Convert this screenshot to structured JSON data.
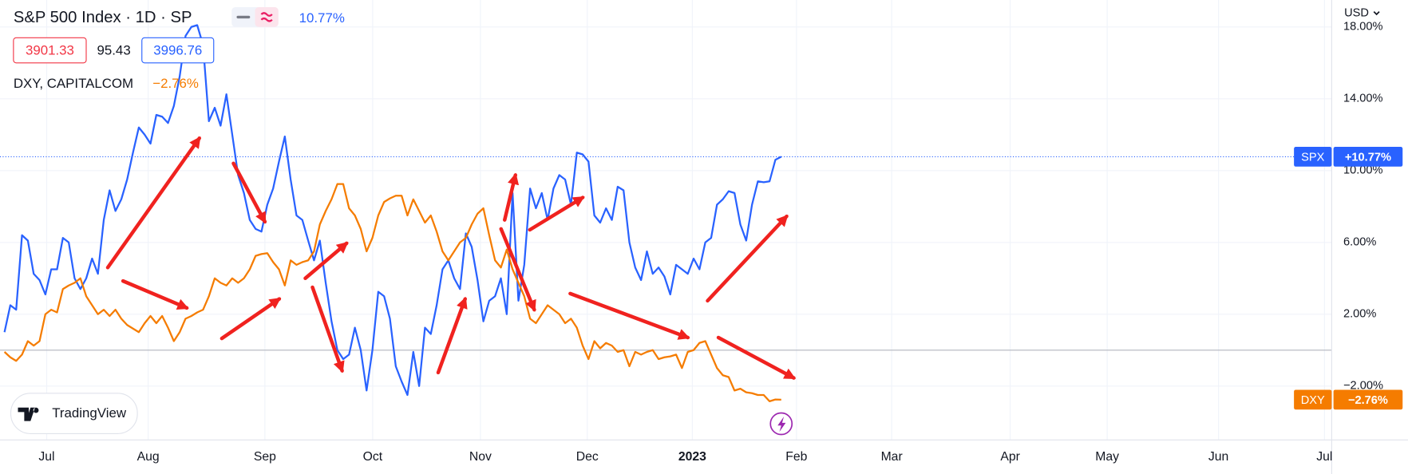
{
  "chart_data": {
    "type": "line",
    "title": "S&P 500 Index · 1D · SP",
    "change": "10.77%",
    "ohlc": [
      "3901.33",
      "95.43",
      "3996.76"
    ],
    "compare_label": "DXY, CAPITALCOM",
    "compare_change": "−2.76%",
    "currency": "USD",
    "brand": "TradingView",
    "x_labels": [
      "Jul",
      "Aug",
      "Sep",
      "Oct",
      "Nov",
      "Dec",
      "2023",
      "Feb",
      "Mar",
      "Apr",
      "May",
      "Jun",
      "Jul"
    ],
    "ylim": [
      -5,
      19.5
    ],
    "yticks": [
      {
        "value": 18,
        "label": "18.00%"
      },
      {
        "value": 14,
        "label": "14.00%"
      },
      {
        "value": 10,
        "label": "10.00%"
      },
      {
        "value": 6,
        "label": "6.00%"
      },
      {
        "value": 2,
        "label": "2.00%"
      },
      {
        "value": -2,
        "label": "−2.00%"
      }
    ],
    "baseline": 0,
    "series": [
      {
        "name": "SPX",
        "color": "#2962ff",
        "last_label": "+10.77%",
        "values": [
          1.0,
          2.5,
          2.25,
          6.4,
          6.1,
          4.25,
          3.9,
          3.1,
          4.5,
          4.5,
          6.25,
          6.0,
          4.0,
          3.4,
          4.0,
          5.1,
          4.25,
          7.25,
          8.9,
          7.75,
          8.4,
          9.5,
          11.0,
          12.4,
          12.0,
          11.5,
          13.1,
          13.0,
          12.65,
          13.6,
          15.25,
          17.5,
          18.0,
          18.1,
          17.0,
          12.75,
          13.5,
          12.5,
          14.25,
          12.0,
          9.75,
          8.75,
          7.25,
          6.75,
          6.6,
          8.1,
          9.0,
          10.5,
          11.9,
          9.5,
          7.5,
          7.25,
          6.1,
          5.0,
          6.1,
          3.75,
          1.6,
          0,
          -0.5,
          -0.25,
          1.25,
          0,
          -2.25,
          0,
          3.25,
          3.0,
          1.75,
          -0.9,
          -1.75,
          -2.5,
          -0.1,
          -2.0,
          1.25,
          0.9,
          2.5,
          4.5,
          5.0,
          4.0,
          3.4,
          6.5,
          5.75,
          3.9,
          1.6,
          2.75,
          3.0,
          4.0,
          2.0,
          8.75,
          2.75,
          4.75,
          9.0,
          7.9,
          8.75,
          7.25,
          9.0,
          9.75,
          9.5,
          8.1,
          11.0,
          10.9,
          10.5,
          7.5,
          7.1,
          7.9,
          7.25,
          9.1,
          8.9,
          6.0,
          4.6,
          3.9,
          5.5,
          4.25,
          4.6,
          4.1,
          3.1,
          4.75,
          4.5,
          4.25,
          5.1,
          4.5,
          6.0,
          6.25,
          8.1,
          8.4,
          8.85,
          8.75,
          7.0,
          6.1,
          8.1,
          9.4,
          9.35,
          9.4,
          10.6,
          10.77
        ]
      },
      {
        "name": "DXY",
        "color": "#f57c00",
        "last_label": "−2.76%",
        "values": [
          -0.1,
          -0.4,
          -0.6,
          -0.25,
          0.5,
          0.25,
          0.5,
          2.0,
          2.25,
          2.1,
          3.4,
          3.6,
          3.75,
          4.0,
          3.0,
          2.5,
          2.0,
          2.25,
          1.9,
          2.25,
          1.75,
          1.4,
          1.2,
          1.0,
          1.5,
          1.9,
          1.5,
          1.9,
          1.25,
          0.5,
          1.0,
          1.75,
          1.9,
          2.1,
          2.25,
          3.0,
          4.0,
          3.75,
          3.6,
          4.0,
          3.75,
          4.0,
          4.5,
          5.25,
          5.35,
          5.4,
          4.9,
          4.5,
          3.6,
          5.0,
          4.75,
          4.9,
          5.0,
          5.5,
          7.0,
          7.75,
          8.4,
          9.25,
          9.25,
          7.9,
          7.5,
          6.75,
          5.5,
          6.25,
          7.5,
          8.25,
          8.45,
          8.6,
          8.6,
          7.5,
          8.4,
          7.75,
          7.1,
          7.5,
          6.6,
          5.5,
          5.0,
          5.5,
          6.0,
          6.25,
          7.0,
          7.6,
          7.9,
          6.4,
          5.0,
          4.6,
          5.6,
          4.5,
          3.75,
          3.0,
          1.75,
          1.5,
          2.0,
          2.5,
          2.25,
          2.0,
          1.5,
          1.75,
          1.25,
          0.25,
          -0.5,
          0.5,
          0.1,
          0.4,
          0.25,
          -0.1,
          0,
          -0.9,
          -0.1,
          -0.25,
          -0.1,
          0,
          -0.5,
          -0.4,
          -0.35,
          -0.25,
          -1.0,
          -0.1,
          0,
          0.4,
          0.5,
          -0.25,
          -1.0,
          -1.4,
          -1.5,
          -2.25,
          -2.15,
          -2.35,
          -2.4,
          -2.5,
          -2.5,
          -2.85,
          -2.75,
          -2.76
        ]
      }
    ]
  }
}
